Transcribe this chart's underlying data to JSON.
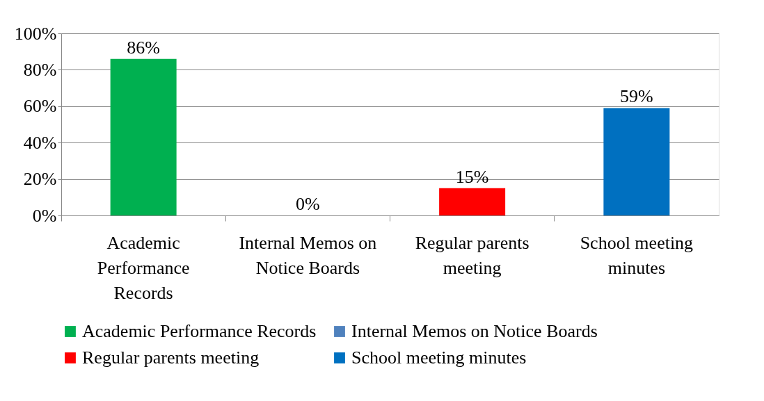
{
  "chart_data": {
    "type": "bar",
    "categories": [
      "Academic Performance Records",
      "Internal Memos on Notice Boards",
      "Regular parents meeting",
      "School meeting minutes"
    ],
    "series": [
      {
        "name": "Academic Performance Records",
        "color": "#00b050",
        "values": [
          86,
          null,
          null,
          null
        ],
        "value_labels": [
          "86%",
          null,
          null,
          null
        ]
      },
      {
        "name": "Internal Memos on Notice Boards",
        "color": "#4f81bd",
        "values": [
          null,
          0,
          null,
          null
        ],
        "value_labels": [
          null,
          "0%",
          null,
          null
        ]
      },
      {
        "name": "Regular parents meeting",
        "color": "#ff0000",
        "values": [
          null,
          null,
          15,
          null
        ],
        "value_labels": [
          null,
          null,
          "15%",
          null
        ]
      },
      {
        "name": "School meeting minutes",
        "color": "#0070c0",
        "values": [
          null,
          null,
          null,
          59
        ],
        "value_labels": [
          null,
          null,
          null,
          "59%"
        ]
      }
    ],
    "stacked": true,
    "ylim": [
      0,
      100
    ],
    "yticks": [
      {
        "value": 0,
        "label": "0%"
      },
      {
        "value": 20,
        "label": "20%"
      },
      {
        "value": 40,
        "label": "40%"
      },
      {
        "value": 60,
        "label": "60%"
      },
      {
        "value": 80,
        "label": "80%"
      },
      {
        "value": 100,
        "label": "100%"
      }
    ],
    "grid": "y",
    "legend": "bottom"
  }
}
